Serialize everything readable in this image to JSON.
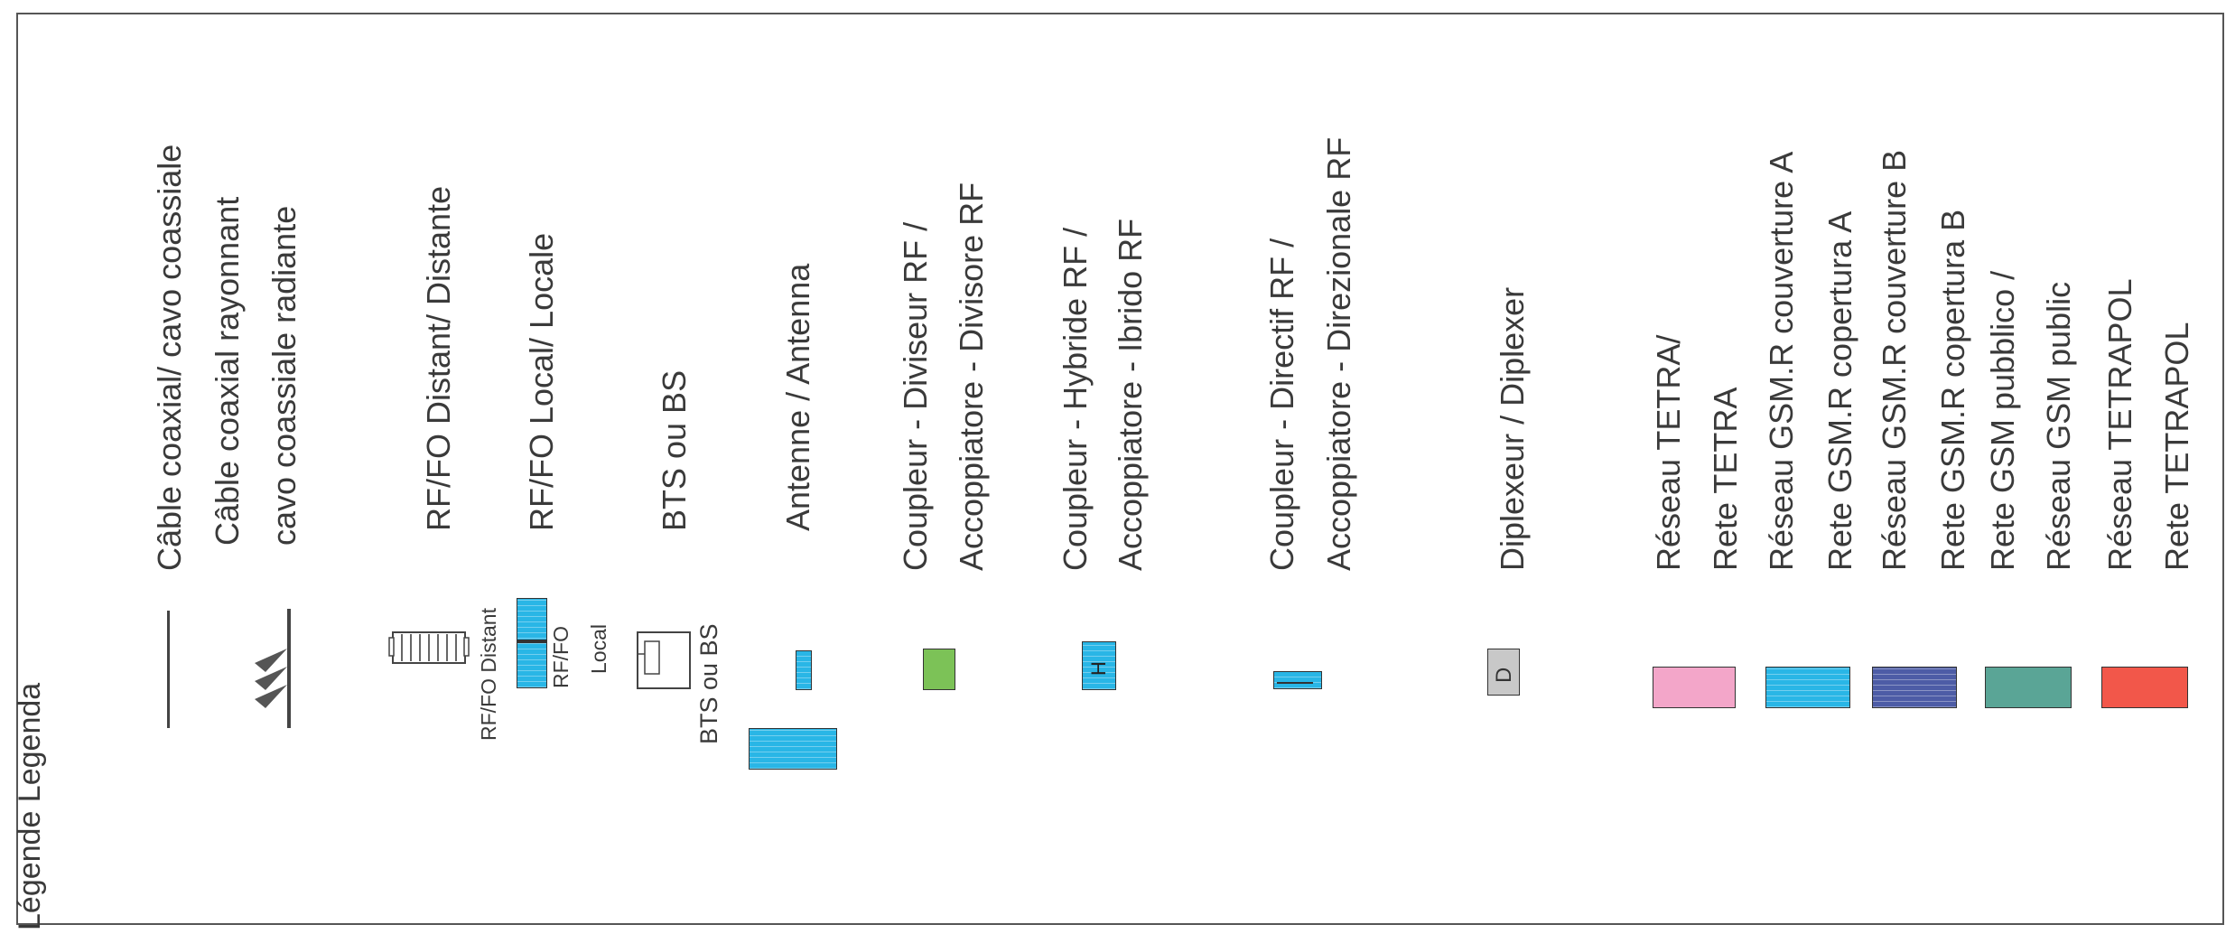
{
  "title": "Légende  Legenda",
  "legend": {
    "coax_cable": "Câble coaxial/ cavo coassiale",
    "radiating_cable_line1": "Câble coaxial rayonnant",
    "radiating_cable_line2": "cavo coassiale radiante",
    "rf_fo_distant": "RF/FO Distant/ Distante",
    "rf_fo_local": "RF/FO Local/ Locale",
    "bts": "BTS ou BS",
    "antenna": "Antenne / Antenna",
    "splitter_line1": "Coupleur - Diviseur RF /",
    "splitter_line2": "Accoppiatore - Divisore RF",
    "hybrid_line1": "Coupleur - Hybride RF /",
    "hybrid_line2": "Accoppiatore - Ibrido RF",
    "directional_line1": "Coupleur - Directif RF /",
    "directional_line2": "Accoppiatore - Direzionale RF",
    "diplexer": "Diplexeur  / Diplexer",
    "tetra_line1": "Réseau  TETRA/",
    "tetra_line2": "Rete TETRA",
    "gsmr_a_line1": "Réseau GSM.R couverture A",
    "gsmr_a_line2": "Rete GSM.R  copertura A",
    "gsmr_b_line1": "Réseau GSM.R couverture B",
    "gsmr_b_line2": "Rete GSM.R  copertura B",
    "gsm_public_line1": "Rete GSM  pubblico /",
    "gsm_public_line2": "Réseau GSM public",
    "tetrapol_line1": "Réseau TETRAPOL",
    "tetrapol_line2": "Rete TETRAPOL"
  },
  "symbol_labels": {
    "rf_fo_distant": "RF/FO Distant",
    "rf_fo_local_line1": "RF/FO",
    "rf_fo_local_line2": "Local",
    "bts": "BTS ou BS",
    "hybrid_letter": "H",
    "diplexer_letter": "D"
  },
  "colors": {
    "tetra": "#f3a6c9",
    "gsmr_a": "#29b6e6",
    "gsmr_b": "#4d5ca6",
    "gsm_public": "#5aa596",
    "tetrapol": "#f2574a",
    "cyan": "#29b6e6",
    "splitter_green": "#7cc257",
    "diplexer_grey": "#c8c8c8"
  }
}
